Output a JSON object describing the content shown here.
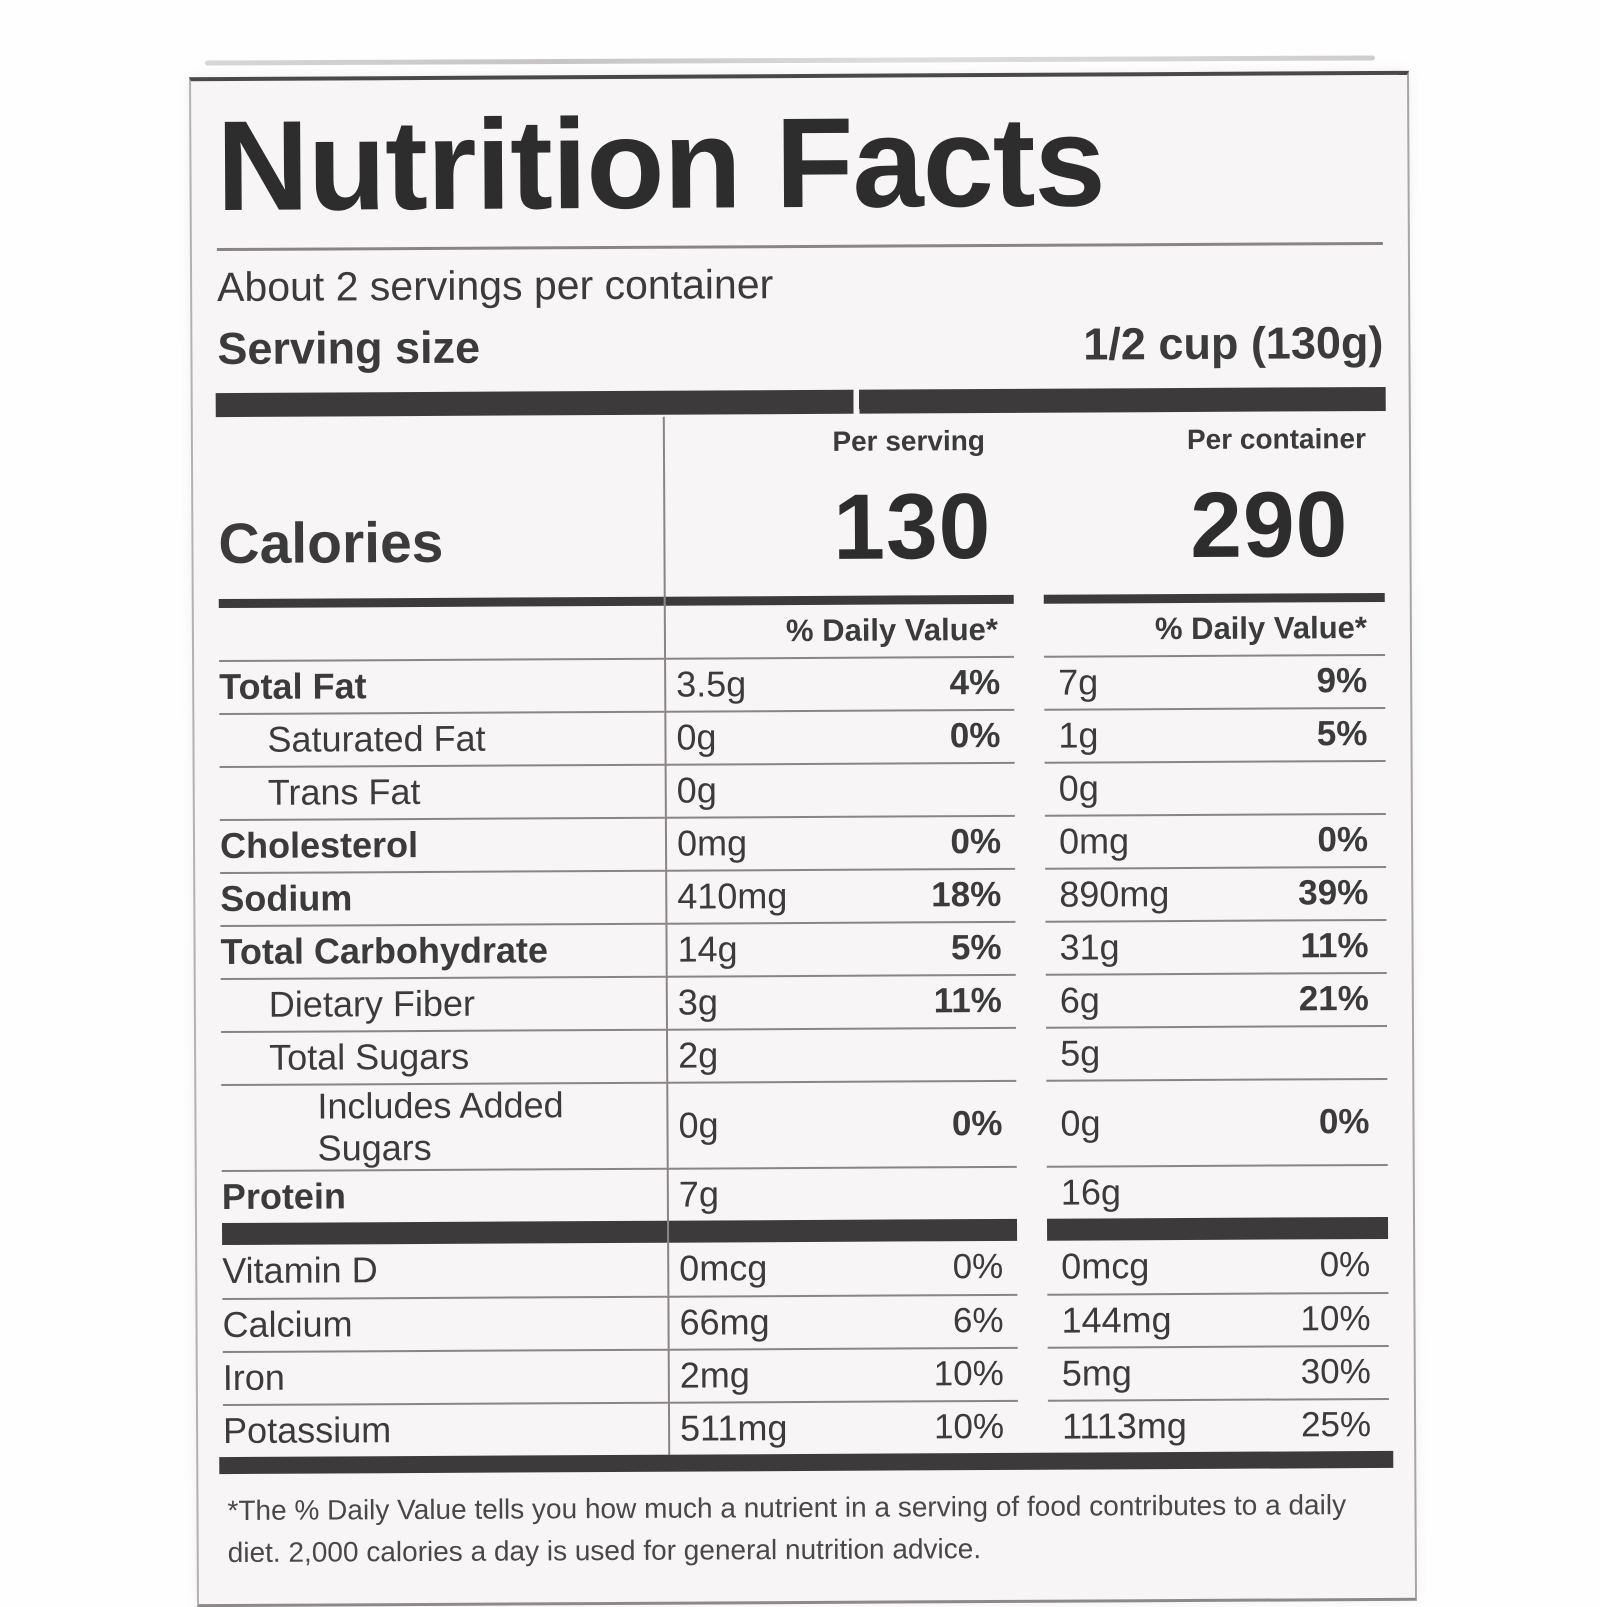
{
  "label": {
    "title": "Nutrition Facts",
    "servings_per_container": "About 2 servings per container",
    "serving_size_label": "Serving size",
    "serving_size_value": "1/2 cup (130g)",
    "columns": {
      "serving": "Per serving",
      "container": "Per container"
    },
    "calories": {
      "label": "Calories",
      "per_serving": "130",
      "per_container": "290"
    },
    "daily_value_header": "% Daily Value*",
    "nutrients": [
      {
        "name": "Total Fat",
        "bold": true,
        "indent": 0,
        "per_serving": {
          "amount": "3.5g",
          "daily_value": "4%"
        },
        "per_container": {
          "amount": "7g",
          "daily_value": "9%"
        }
      },
      {
        "name": "Saturated Fat",
        "bold": false,
        "indent": 1,
        "per_serving": {
          "amount": "0g",
          "daily_value": "0%"
        },
        "per_container": {
          "amount": "1g",
          "daily_value": "5%"
        }
      },
      {
        "name": "Trans Fat",
        "bold": false,
        "indent": 1,
        "per_serving": {
          "amount": "0g",
          "daily_value": ""
        },
        "per_container": {
          "amount": "0g",
          "daily_value": ""
        }
      },
      {
        "name": "Cholesterol",
        "bold": true,
        "indent": 0,
        "per_serving": {
          "amount": "0mg",
          "daily_value": "0%"
        },
        "per_container": {
          "amount": "0mg",
          "daily_value": "0%"
        }
      },
      {
        "name": "Sodium",
        "bold": true,
        "indent": 0,
        "per_serving": {
          "amount": "410mg",
          "daily_value": "18%"
        },
        "per_container": {
          "amount": "890mg",
          "daily_value": "39%"
        }
      },
      {
        "name": "Total Carbohydrate",
        "bold": true,
        "indent": 0,
        "per_serving": {
          "amount": "14g",
          "daily_value": "5%"
        },
        "per_container": {
          "amount": "31g",
          "daily_value": "11%"
        }
      },
      {
        "name": "Dietary Fiber",
        "bold": false,
        "indent": 1,
        "per_serving": {
          "amount": "3g",
          "daily_value": "11%"
        },
        "per_container": {
          "amount": "6g",
          "daily_value": "21%"
        }
      },
      {
        "name": "Total Sugars",
        "bold": false,
        "indent": 1,
        "per_serving": {
          "amount": "2g",
          "daily_value": ""
        },
        "per_container": {
          "amount": "5g",
          "daily_value": ""
        }
      },
      {
        "name": "Includes Added Sugars",
        "bold": false,
        "indent": 2,
        "per_serving": {
          "amount": "0g",
          "daily_value": "0%"
        },
        "per_container": {
          "amount": "0g",
          "daily_value": "0%"
        }
      },
      {
        "name": "Protein",
        "bold": true,
        "indent": 0,
        "per_serving": {
          "amount": "7g",
          "daily_value": ""
        },
        "per_container": {
          "amount": "16g",
          "daily_value": ""
        }
      }
    ],
    "vitamins": [
      {
        "name": "Vitamin D",
        "bold": false,
        "indent": 0,
        "per_serving": {
          "amount": "0mcg",
          "daily_value": "0%"
        },
        "per_container": {
          "amount": "0mcg",
          "daily_value": "0%"
        }
      },
      {
        "name": "Calcium",
        "bold": false,
        "indent": 0,
        "per_serving": {
          "amount": "66mg",
          "daily_value": "6%"
        },
        "per_container": {
          "amount": "144mg",
          "daily_value": "10%"
        }
      },
      {
        "name": "Iron",
        "bold": false,
        "indent": 0,
        "per_serving": {
          "amount": "2mg",
          "daily_value": "10%"
        },
        "per_container": {
          "amount": "5mg",
          "daily_value": "30%"
        }
      },
      {
        "name": "Potassium",
        "bold": false,
        "indent": 0,
        "per_serving": {
          "amount": "511mg",
          "daily_value": "10%"
        },
        "per_container": {
          "amount": "1113mg",
          "daily_value": "25%"
        }
      }
    ],
    "footnote": "*The % Daily Value tells you how much a nutrient in a serving of food contributes to a daily diet. 2,000 calories a day is used for general nutrition advice."
  },
  "colors": {
    "text": "#3b3b3b",
    "text_strong": "#2d2d2d",
    "bar": "#3c3a3b",
    "rule": "#8a8487",
    "label_background": "#f7f5f6"
  }
}
